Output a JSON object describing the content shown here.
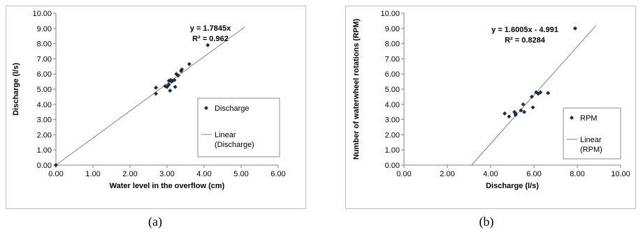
{
  "captions": [
    "(a)",
    "(b)"
  ],
  "chart_data": [
    {
      "type": "scatter",
      "xlabel": "Water level in the overflow (cm)",
      "ylabel": "Discharge (l/s)",
      "xlim": [
        0,
        6
      ],
      "ylim": [
        0,
        10
      ],
      "x_ticks": [
        "0.00",
        "1.00",
        "2.00",
        "3.00",
        "4.00",
        "5.00",
        "6.00"
      ],
      "y_ticks": [
        "0.00",
        "1.00",
        "2.00",
        "3.00",
        "4.00",
        "5.00",
        "6.00",
        "7.00",
        "8.00",
        "9.00",
        "10.00"
      ],
      "grid": false,
      "legend_position": "right",
      "series": [
        {
          "name": "Discharge",
          "x": [
            0,
            2.7,
            2.7,
            2.95,
            3.0,
            3.05,
            3.05,
            3.08,
            3.1,
            3.12,
            3.15,
            3.2,
            3.22,
            3.25,
            3.3,
            3.38,
            3.4,
            3.6,
            4.1
          ],
          "y": [
            0,
            4.7,
            5.1,
            5.2,
            5.15,
            5.3,
            5.55,
            4.9,
            5.6,
            5.5,
            5.55,
            5.6,
            5.15,
            6.0,
            5.9,
            6.2,
            6.3,
            6.65,
            7.9
          ],
          "color": "#1f2a44"
        },
        {
          "name": "Linear\n(Discharge)",
          "type": "line",
          "x": [
            0,
            5.1
          ],
          "y": [
            0,
            9.1
          ],
          "color": "#7f7f7f"
        }
      ],
      "legend": [
        "Discharge",
        "Linear",
        "(Discharge)"
      ],
      "annotations": [
        "y = 1.7845x",
        "R² = 0.962"
      ]
    },
    {
      "type": "scatter",
      "xlabel": "Discharge (l/s)",
      "ylabel": "Number of waterwheel rotations (RPM)",
      "xlim": [
        0,
        10
      ],
      "ylim": [
        0,
        10
      ],
      "x_ticks": [
        "0.00",
        "2.00",
        "4.00",
        "6.00",
        "8.00",
        "10.00"
      ],
      "y_ticks": [
        "0.00",
        "1.00",
        "2.00",
        "3.00",
        "4.00",
        "5.00",
        "6.00",
        "7.00",
        "8.00",
        "9.00",
        "10.00"
      ],
      "grid": false,
      "legend_position": "right",
      "series": [
        {
          "name": "RPM",
          "x": [
            4.65,
            4.85,
            5.1,
            5.15,
            5.15,
            5.4,
            5.5,
            5.55,
            5.9,
            5.95,
            6.1,
            6.2,
            6.3,
            6.65,
            7.9
          ],
          "y": [
            3.4,
            3.2,
            3.5,
            3.3,
            3.4,
            3.6,
            4.0,
            3.5,
            4.5,
            3.8,
            4.8,
            4.7,
            4.8,
            4.75,
            9.0
          ],
          "color": "#1f2a44"
        },
        {
          "name": "Linear\n(RPM)",
          "type": "line",
          "x": [
            3.118,
            8.86
          ],
          "y": [
            0,
            9.19
          ],
          "color": "#7f7f7f"
        }
      ],
      "legend": [
        "RPM",
        "Linear",
        "(RPM)"
      ],
      "annotations": [
        "y = 1.6005x - 4.991",
        "R² = 0.8284"
      ]
    }
  ]
}
